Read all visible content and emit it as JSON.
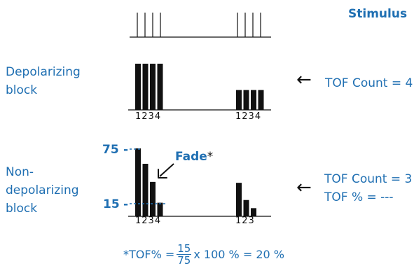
{
  "labels": {
    "stimulus": "Stimulus",
    "depolarizing": [
      "Depolarizing",
      "block"
    ],
    "nondepolarizing": [
      "Non-",
      "depolarizing",
      "block"
    ],
    "tof_count_4": "TOF Count = 4",
    "tof_count_3": "TOF Count = 3",
    "tof_percent": "TOF % = ---",
    "fade": "Fade",
    "fade_mark": "*",
    "arrow": "←"
  },
  "axis_values": {
    "top": "75",
    "bottom": "15",
    "dash": "-"
  },
  "tick_labels": {
    "first_set": "1234",
    "second_set_dep": "1234",
    "second_set_nondep": "123"
  },
  "formula": {
    "prefix": "*TOF% =",
    "numerator": "15",
    "denominator": "75",
    "suffix": "x 100 % = 20 %"
  },
  "chart_data": {
    "type": "bar",
    "stimulus_trains": [
      4,
      4
    ],
    "depolarizing": {
      "train1": [
        1,
        1,
        1,
        1
      ],
      "train2": [
        0.43,
        0.43,
        0.43,
        0.43
      ]
    },
    "nondepolarizing": {
      "train1": [
        75,
        58,
        38,
        15
      ],
      "train2": [
        37,
        18,
        9
      ]
    },
    "colors": {
      "accent": "#1f6fb2",
      "bars": "#111111"
    }
  }
}
